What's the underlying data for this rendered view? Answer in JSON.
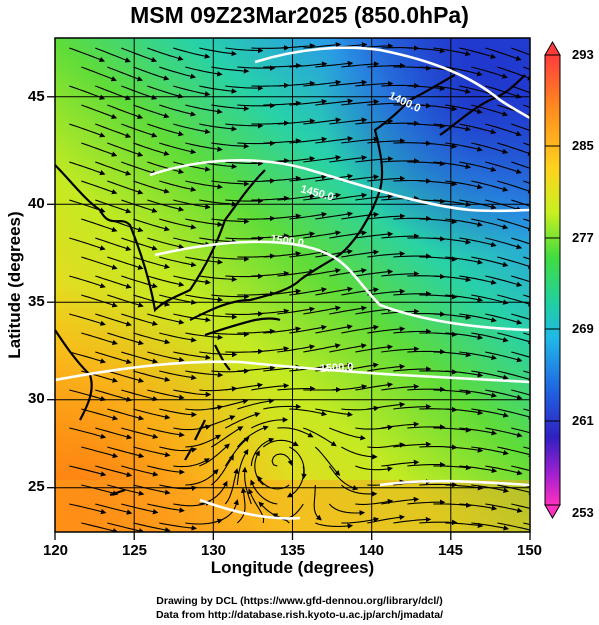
{
  "title": "MSM 09Z23Mar2025 (850.0hPa)",
  "axes": {
    "xlabel": "Longitude (degrees)",
    "ylabel": "Latitude  (degrees)",
    "xticks": [
      "120",
      "125",
      "130",
      "135",
      "140",
      "145",
      "150"
    ],
    "yticks": [
      "25",
      "30",
      "35",
      "40",
      "45"
    ]
  },
  "colorbar": {
    "labels": [
      "293",
      "285",
      "277",
      "269",
      "261",
      "253"
    ],
    "colors": [
      "#ff4040",
      "#ff9020",
      "#ffd020",
      "#e0f020",
      "#60e040",
      "#30d860",
      "#20d0c0",
      "#20a0e8",
      "#2050e0",
      "#4020c0",
      "#c020d0",
      "#ff30c0"
    ]
  },
  "contour_labels": [
    "1400.0",
    "1450.0",
    "1500.0",
    "1500.0"
  ],
  "credits": {
    "line1": "Drawing by DCL (https://www.gfd-dennou.org/library/dcl/)",
    "line2": "Data from http://database.rish.kyoto-u.ac.jp/arch/jmadata/"
  },
  "chart_data": {
    "type": "heatmap",
    "title": "MSM 09Z23Mar2025 (850.0hPa)",
    "xlabel": "Longitude (degrees)",
    "ylabel": "Latitude  (degrees)",
    "xlim": [
      120,
      150
    ],
    "ylim": [
      22.4,
      47.6
    ],
    "color_range": [
      253,
      293
    ],
    "colorbar_ticks": [
      253,
      261,
      269,
      277,
      285,
      293
    ],
    "contour_levels": [
      1400.0,
      1450.0,
      1500.0
    ],
    "overlay": "streamlines"
  }
}
